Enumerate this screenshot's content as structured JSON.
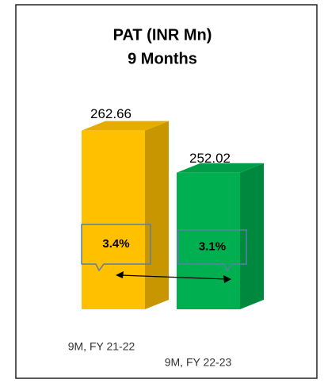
{
  "chart_data": {
    "type": "bar3d",
    "title": "PAT (INR Mn)",
    "subtitle": "9 Months",
    "categories": [
      "9M, FY 21-22",
      "9M, FY 22-23"
    ],
    "values": [
      262.66,
      252.02
    ],
    "value_labels": [
      "262.66",
      "252.02"
    ],
    "colors": [
      "#FFC000",
      "#00B050"
    ],
    "ylim": [
      217.5,
      266
    ],
    "annotations": [
      "3.4%",
      "3.1%"
    ]
  }
}
